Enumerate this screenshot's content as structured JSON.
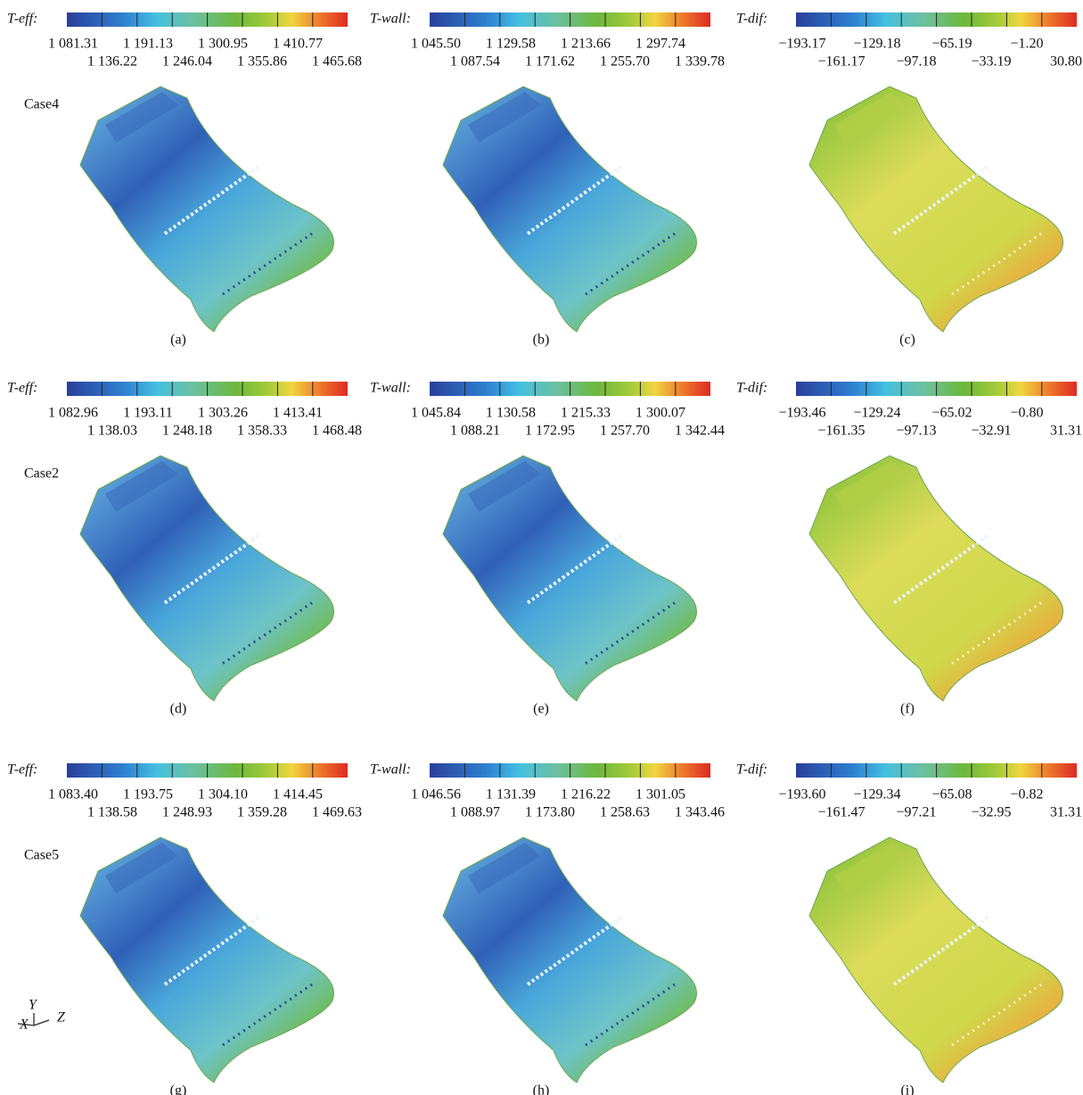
{
  "rows": [
    {
      "case": "Case4",
      "panels": [
        {
          "label": "T-eff:",
          "ticks_top": [
            "1 081.31",
            "1 191.13",
            "1 300.95",
            "1 410.77"
          ],
          "ticks_bottom": [
            "1 136.22",
            "1 246.04",
            "1 355.86",
            "1 465.68"
          ],
          "caption": "(a)"
        },
        {
          "label": "T-wall:",
          "ticks_top": [
            "1 045.50",
            "1 129.58",
            "1 213.66",
            "1 297.74"
          ],
          "ticks_bottom": [
            "1 087.54",
            "1 171.62",
            "1 255.70",
            "1 339.78"
          ],
          "caption": "(b)"
        },
        {
          "label": "T-dif:",
          "ticks_top": [
            "−193.17",
            "−129.18",
            "−65.19",
            "−1.20"
          ],
          "ticks_bottom": [
            "−161.17",
            "−97.18",
            "−33.19",
            "30.80"
          ],
          "caption": "(c)"
        }
      ]
    },
    {
      "case": "Case2",
      "panels": [
        {
          "label": "T-eff:",
          "ticks_top": [
            "1 082.96",
            "1 193.11",
            "1 303.26",
            "1 413.41"
          ],
          "ticks_bottom": [
            "1 138.03",
            "1 248.18",
            "1 358.33",
            "1 468.48"
          ],
          "caption": "(d)"
        },
        {
          "label": "T-wall:",
          "ticks_top": [
            "1 045.84",
            "1 130.58",
            "1 215.33",
            "1 300.07"
          ],
          "ticks_bottom": [
            "1 088.21",
            "1 172.95",
            "1 257.70",
            "1 342.44"
          ],
          "caption": "(e)"
        },
        {
          "label": "T-dif:",
          "ticks_top": [
            "−193.46",
            "−129.24",
            "−65.02",
            "−0.80"
          ],
          "ticks_bottom": [
            "−161.35",
            "−97.13",
            "−32.91",
            "31.31"
          ],
          "caption": "(f)"
        }
      ]
    },
    {
      "case": "Case5",
      "panels": [
        {
          "label": "T-eff:",
          "ticks_top": [
            "1 083.40",
            "1 193.75",
            "1 304.10",
            "1 414.45"
          ],
          "ticks_bottom": [
            "1 138.58",
            "1 248.93",
            "1 359.28",
            "1 469.63"
          ],
          "caption": "(g)"
        },
        {
          "label": "T-wall:",
          "ticks_top": [
            "1 046.56",
            "1 131.39",
            "1 216.22",
            "1 301.05"
          ],
          "ticks_bottom": [
            "1 088.97",
            "1 173.80",
            "1 258.63",
            "1 343.46"
          ],
          "caption": "(h)"
        },
        {
          "label": "T-dif:",
          "ticks_top": [
            "−193.60",
            "−129.34",
            "−65.08",
            "−0.82"
          ],
          "ticks_bottom": [
            "−161.47",
            "−97.21",
            "−32.95",
            "31.31"
          ],
          "caption": "(i)"
        }
      ]
    }
  ],
  "axes": {
    "x": "X",
    "y": "Y",
    "z": "Z"
  }
}
